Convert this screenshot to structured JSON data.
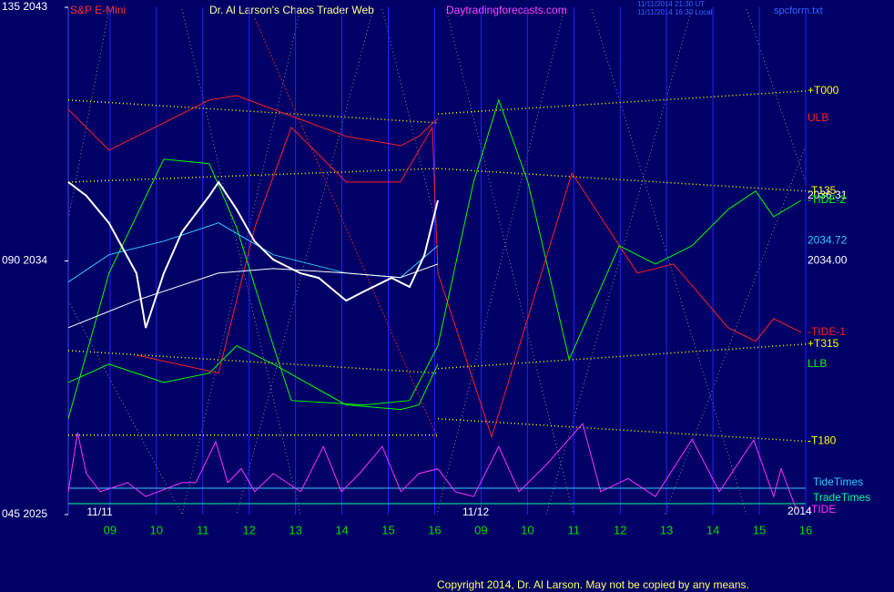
{
  "header": {
    "symbol": "S&P E-Mini",
    "title": "Dr. Al Larson's Chaos Trader Web",
    "site": "Daytradingforecasts.com",
    "time_ut": "11/11/2014 21:30 UT",
    "time_local": "11/11/2014 16:30 Local",
    "file": "spcform.txt"
  },
  "footer": "Copyright 2014, Dr. Al Larson. May not be copied by any means.",
  "chart_data": [
    {
      "type": "line",
      "xlim": [
        0.1,
        16
      ],
      "ylim": [
        2025,
        2043
      ],
      "yticks": [
        {
          "value": 2043,
          "label": "135 2043"
        },
        {
          "value": 2034,
          "label": "090 2034"
        },
        {
          "value": 2025,
          "label": "045 2025"
        }
      ],
      "xticks": [
        {
          "value": 1,
          "label": "09"
        },
        {
          "value": 2,
          "label": "10"
        },
        {
          "value": 3,
          "label": "11"
        },
        {
          "value": 4,
          "label": "12"
        },
        {
          "value": 5,
          "label": "13"
        },
        {
          "value": 6,
          "label": "14"
        },
        {
          "value": 7,
          "label": "15"
        },
        {
          "value": 8,
          "label": "16"
        },
        {
          "value": 9,
          "label": "09"
        },
        {
          "value": 10,
          "label": "10"
        },
        {
          "value": 11,
          "label": "11"
        },
        {
          "value": 12,
          "label": "12"
        },
        {
          "value": 13,
          "label": "13"
        },
        {
          "value": 14,
          "label": "14"
        },
        {
          "value": 15,
          "label": "15"
        },
        {
          "value": 16,
          "label": "16"
        }
      ],
      "grid": true,
      "day_labels": [
        {
          "value": 0.5,
          "label": "11/11"
        },
        {
          "value": 8.6,
          "label": "11/12"
        }
      ],
      "price_labels": [
        {
          "value": 2036.31,
          "label": "2036.31",
          "color": "#ffffff"
        },
        {
          "value": 2034.72,
          "label": "2034.72",
          "color": "#33ccff"
        },
        {
          "value": 2034.0,
          "label": "2034.00",
          "color": "#ffffff"
        }
      ],
      "series": [
        {
          "name": "+T000",
          "color": "#ffff00",
          "style": "dotted",
          "x": [
            0.1,
            8.07,
            8.07,
            8.07,
            16
          ],
          "values": [
            2039.71,
            2038.9,
            null,
            2039.22,
            2040.03
          ]
        },
        {
          "name": "-T135",
          "color": "#ffff00",
          "style": "dotted",
          "x": [
            0.1,
            8.07,
            8.07,
            8.07,
            16
          ],
          "values": [
            2036.8,
            2037.28,
            null,
            2037.28,
            2036.48
          ]
        },
        {
          "name": "+T315",
          "color": "#ffff00",
          "style": "dotted",
          "x": [
            0.1,
            8.07,
            8.07,
            8.07,
            16
          ],
          "values": [
            2030.82,
            2030.02,
            null,
            2030.18,
            2031.05
          ]
        },
        {
          "name": "-T180",
          "color": "#ffff00",
          "style": "dotted",
          "x": [
            0.1,
            8.07,
            8.07,
            8.07,
            16
          ],
          "values": [
            2027.82,
            2027.82,
            null,
            2028.4,
            2027.6
          ]
        },
        {
          "name": "ULB",
          "color": "#ff2020",
          "style": "solid",
          "x": [
            0.1,
            0.98,
            2.16,
            3.14,
            3.73,
            4.52,
            6.09,
            7.27,
            7.66,
            8.07
          ],
          "values": [
            2039.38,
            2037.93,
            2038.9,
            2039.71,
            2039.87,
            2039.38,
            2038.42,
            2038.09,
            2038.42,
            2039.06
          ]
        },
        {
          "name": "LLB",
          "color": "#00ff00",
          "style": "solid",
          "x": [
            0.1,
            0.98,
            2.16,
            3.14,
            3.73,
            4.52,
            6.09,
            7.27,
            7.66,
            8.07
          ],
          "values": [
            2029.69,
            2030.34,
            2029.69,
            2030.02,
            2030.99,
            2030.34,
            2028.89,
            2028.73,
            2028.89,
            2030.34
          ]
        },
        {
          "name": "-TIDE-1",
          "color": "#ff2020",
          "style": "solid",
          "x": [
            1.57,
            3.34,
            4.12,
            4.91,
            6.09,
            7.26,
            7.95,
            8.07,
            9.23,
            10.96,
            12.37,
            13.15,
            14.33,
            14.92,
            15.31,
            15.9
          ],
          "values": [
            2030.66,
            2030.02,
            2035.19,
            2038.74,
            2036.8,
            2036.8,
            2038.74,
            2033.57,
            2027.76,
            2037.12,
            2033.57,
            2033.89,
            2031.63,
            2031.15,
            2031.95,
            2031.47
          ]
        },
        {
          "name": "-TIDE-2",
          "color": "#00ff00",
          "style": "solid",
          "x": [
            0.1,
            0.98,
            2.16,
            3.14,
            3.73,
            4.52,
            4.91,
            6.48,
            7.46,
            8.07,
            8.84,
            9.38,
            10.01,
            10.9,
            11.98,
            12.76,
            13.55,
            14.33,
            14.92,
            15.31,
            15.9
          ],
          "values": [
            2028.4,
            2033.57,
            2037.61,
            2037.45,
            2035.19,
            2030.99,
            2029.05,
            2028.89,
            2029.05,
            2030.99,
            2036.8,
            2039.71,
            2036.8,
            2030.5,
            2034.54,
            2033.89,
            2034.54,
            2035.83,
            2036.48,
            2035.57,
            2036.15
          ]
        },
        {
          "color": "#33ccff",
          "style": "solid",
          "x": [
            0.1,
            0.98,
            2.16,
            3.34,
            4.52,
            6.09,
            7.26,
            8.07
          ],
          "values": [
            2033.25,
            2034.22,
            2034.7,
            2035.35,
            2034.22,
            2033.57,
            2033.41,
            2034.54
          ]
        },
        {
          "color": "#ffffff",
          "style": "solid",
          "x": [
            0.1,
            1.57,
            3.34,
            4.52,
            6.09,
            7.26,
            8.07
          ],
          "values": [
            2031.63,
            2032.6,
            2033.57,
            2033.73,
            2033.57,
            2033.41,
            2033.89
          ]
        },
        {
          "color": "#ffffff",
          "style": "bold",
          "x": [
            0.1,
            0.49,
            0.98,
            1.57,
            1.77,
            2.16,
            2.55,
            3.14,
            3.34,
            3.73,
            4.12,
            4.52,
            5.11,
            5.5,
            6.09,
            6.48,
            7.07,
            7.46,
            7.78,
            8.07
          ],
          "values": [
            2036.8,
            2036.31,
            2035.34,
            2033.56,
            2031.62,
            2033.56,
            2035.02,
            2036.31,
            2036.8,
            2035.83,
            2034.69,
            2034.05,
            2033.56,
            2033.4,
            2032.59,
            2032.92,
            2033.4,
            2033.08,
            2034.21,
            2036.15
          ]
        }
      ]
    },
    {
      "type": "line",
      "xlim": [
        0.1,
        16
      ],
      "ylim": [
        0,
        120
      ],
      "year_label": "2014",
      "reference_lines": [
        {
          "name": "TideTimes",
          "color": "#33ccff"
        },
        {
          "name": "TradeTimes",
          "color": "#00ff99"
        }
      ],
      "series": [
        {
          "name": "-TIDE",
          "color": "#ff33ff",
          "style": "solid",
          "x": [
            0.1,
            0.3,
            0.49,
            0.79,
            1.38,
            1.77,
            2.55,
            2.85,
            3.28,
            3.54,
            3.83,
            4.12,
            4.52,
            5.11,
            5.6,
            5.99,
            6.38,
            6.87,
            7.27,
            7.66,
            8.07,
            8.44,
            8.84,
            9.38,
            9.82,
            10.41,
            11.19,
            11.58,
            12.17,
            12.76,
            13.55,
            14.14,
            14.88,
            15.31,
            15.47,
            15.8
          ],
          "values": [
            28,
            100,
            50,
            28,
            39,
            22,
            39,
            39,
            89,
            39,
            56,
            28,
            50,
            28,
            83,
            28,
            50,
            83,
            28,
            50,
            56,
            28,
            22,
            83,
            28,
            61,
            111,
            28,
            44,
            22,
            92,
            28,
            91,
            22,
            56,
            6
          ]
        }
      ]
    }
  ]
}
